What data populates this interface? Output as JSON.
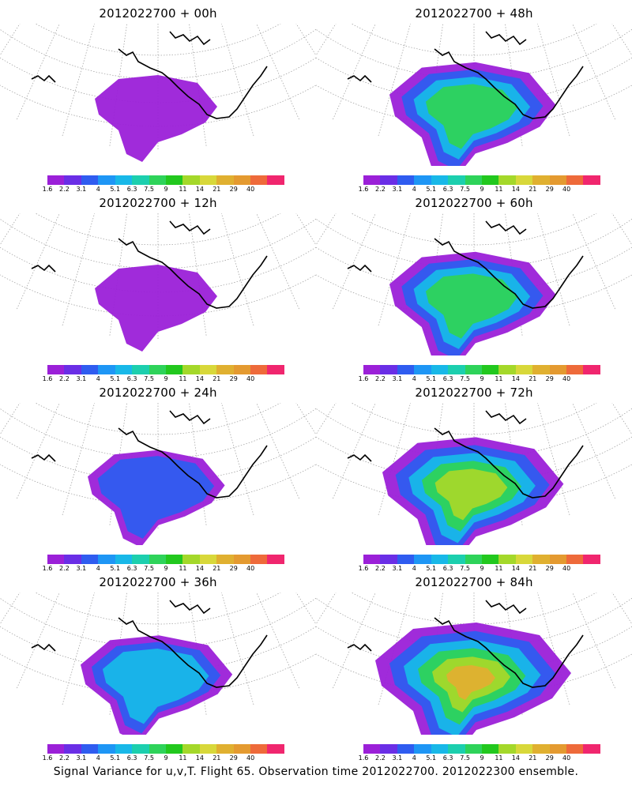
{
  "footer": "Signal Variance for u,v,T. Flight 65. Observation time 2012022700. 2012022300 ensemble.",
  "colorbar": {
    "ticks": [
      "1.6",
      "2.2",
      "3.1",
      "4",
      "5.1",
      "6.3",
      "7.5",
      "9",
      "11",
      "14",
      "21",
      "29",
      "40"
    ],
    "colors": [
      "#9b20d8",
      "#6a2ee6",
      "#2f5cf0",
      "#1e96f5",
      "#18b8e8",
      "#1ccfae",
      "#2ed35a",
      "#22c81e",
      "#a4d82a",
      "#d8d83a",
      "#e0b030",
      "#e49a30",
      "#ee6a3a",
      "#f0266e"
    ]
  },
  "panels": [
    {
      "title": "2012022700 + 00h",
      "level": 1
    },
    {
      "title": "2012022700 + 48h",
      "level": 4
    },
    {
      "title": "2012022700 + 12h",
      "level": 1
    },
    {
      "title": "2012022700 + 60h",
      "level": 4
    },
    {
      "title": "2012022700 + 24h",
      "level": 2
    },
    {
      "title": "2012022700 + 72h",
      "level": 5
    },
    {
      "title": "2012022700 + 36h",
      "level": 3
    },
    {
      "title": "2012022700 + 84h",
      "level": 6
    }
  ]
}
